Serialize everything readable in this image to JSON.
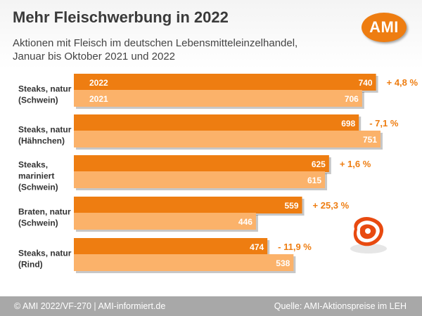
{
  "title": "Mehr Fleischwerbung in 2022",
  "subtitle_line1": "Aktionen mit Fleisch im deutschen Lebensmitteleinzelhandel,",
  "subtitle_line2": "Januar bis Oktober 2021 und 2022",
  "logo_text": "AMI",
  "footer": {
    "left": "© AMI 2022/VF-270 | AMI-informiert.de",
    "right": "Quelle: AMI-Aktionspreise im LEH"
  },
  "colors": {
    "series_2022": "#ee7d11",
    "series_2021": "#fbb26a",
    "change_text": "#ee7d11",
    "footer_bg": "#a8a8a8"
  },
  "icons": {
    "meat": "steak-icon"
  },
  "chart_data": {
    "type": "bar",
    "orientation": "horizontal",
    "title": "Mehr Fleischwerbung in 2022",
    "xlabel": "",
    "ylabel": "",
    "xlim": [
      0,
      800
    ],
    "grid": false,
    "legend": "inside first category bars",
    "categories": [
      [
        "Steaks, natur",
        "(Schwein)"
      ],
      [
        "Steaks, natur",
        "(Hähnchen)"
      ],
      [
        "Steaks,",
        "mariniert",
        "(Schwein)"
      ],
      [
        "Braten, natur",
        "(Schwein)"
      ],
      [
        "Steaks, natur",
        "(Rind)"
      ]
    ],
    "series": [
      {
        "name": "2022",
        "values": [
          740,
          698,
          625,
          559,
          474
        ]
      },
      {
        "name": "2021",
        "values": [
          706,
          751,
          615,
          446,
          538
        ]
      }
    ],
    "changes": [
      "+ 4,8 %",
      "- 7,1 %",
      "+ 1,6 %",
      "+ 25,3 %",
      "- 11,9 %"
    ]
  }
}
